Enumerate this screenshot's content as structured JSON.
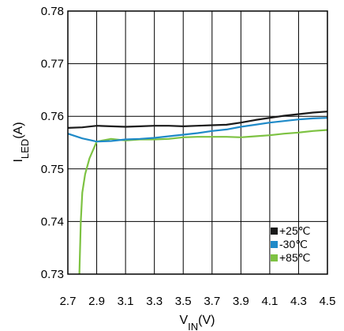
{
  "chart_data": {
    "type": "line",
    "xlabel_main": "V",
    "xlabel_sub": "IN",
    "xlabel_unit": "(V)",
    "ylabel_main": "I",
    "ylabel_sub": "LED",
    "ylabel_unit": "(A)",
    "xlim": [
      2.7,
      4.5
    ],
    "ylim": [
      0.73,
      0.78
    ],
    "x_ticks": [
      2.7,
      2.9,
      3.1,
      3.3,
      3.5,
      3.7,
      3.9,
      4.1,
      4.3,
      4.5
    ],
    "x_tick_labels": [
      "2.7",
      "2.9",
      "3.1",
      "3.3",
      "3.5",
      "3.7",
      "3.9",
      "4.1",
      "4.3",
      "4.5"
    ],
    "y_ticks": [
      0.73,
      0.74,
      0.75,
      0.76,
      0.77,
      0.78
    ],
    "y_tick_labels": [
      "0.73",
      "0.74",
      "0.75",
      "0.76",
      "0.77",
      "0.78"
    ],
    "grid": true,
    "legend_position": "bottom-right",
    "series": [
      {
        "name": "+25℃",
        "color": "#1a1a1a",
        "points": [
          [
            2.7,
            0.7578
          ],
          [
            2.8,
            0.7579
          ],
          [
            2.9,
            0.7582
          ],
          [
            3.0,
            0.7581
          ],
          [
            3.1,
            0.758
          ],
          [
            3.2,
            0.7581
          ],
          [
            3.3,
            0.7582
          ],
          [
            3.4,
            0.7582
          ],
          [
            3.5,
            0.7581
          ],
          [
            3.6,
            0.7582
          ],
          [
            3.7,
            0.7583
          ],
          [
            3.8,
            0.7584
          ],
          [
            3.9,
            0.7588
          ],
          [
            4.0,
            0.7593
          ],
          [
            4.1,
            0.7597
          ],
          [
            4.2,
            0.7601
          ],
          [
            4.3,
            0.7604
          ],
          [
            4.4,
            0.7607
          ],
          [
            4.5,
            0.7609
          ]
        ]
      },
      {
        "name": "-30℃",
        "color": "#1f8ac8",
        "points": [
          [
            2.7,
            0.7567
          ],
          [
            2.8,
            0.7558
          ],
          [
            2.9,
            0.7552
          ],
          [
            3.0,
            0.7553
          ],
          [
            3.1,
            0.7556
          ],
          [
            3.2,
            0.7557
          ],
          [
            3.3,
            0.7559
          ],
          [
            3.4,
            0.7562
          ],
          [
            3.5,
            0.7565
          ],
          [
            3.6,
            0.7568
          ],
          [
            3.7,
            0.7572
          ],
          [
            3.8,
            0.7575
          ],
          [
            3.9,
            0.758
          ],
          [
            4.0,
            0.7584
          ],
          [
            4.1,
            0.7588
          ],
          [
            4.2,
            0.7591
          ],
          [
            4.3,
            0.7594
          ],
          [
            4.4,
            0.7596
          ],
          [
            4.5,
            0.7597
          ]
        ]
      },
      {
        "name": "+85℃",
        "color": "#7dc242",
        "points": [
          [
            2.78,
            0.73
          ],
          [
            2.79,
            0.74
          ],
          [
            2.8,
            0.7455
          ],
          [
            2.82,
            0.749
          ],
          [
            2.85,
            0.752
          ],
          [
            2.9,
            0.7552
          ],
          [
            3.0,
            0.7557
          ],
          [
            3.1,
            0.7554
          ],
          [
            3.2,
            0.7556
          ],
          [
            3.3,
            0.7556
          ],
          [
            3.4,
            0.7557
          ],
          [
            3.5,
            0.756
          ],
          [
            3.6,
            0.7561
          ],
          [
            3.7,
            0.7561
          ],
          [
            3.8,
            0.7561
          ],
          [
            3.9,
            0.756
          ],
          [
            4.0,
            0.7562
          ],
          [
            4.1,
            0.7564
          ],
          [
            4.2,
            0.7567
          ],
          [
            4.3,
            0.7569
          ],
          [
            4.4,
            0.7572
          ],
          [
            4.5,
            0.7574
          ]
        ]
      }
    ]
  }
}
